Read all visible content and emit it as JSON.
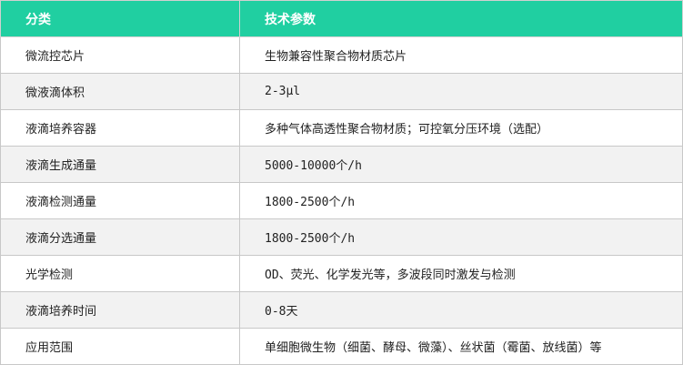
{
  "colors": {
    "header_bg": "#20cfa1",
    "alt_row_bg": "#f2f2f2"
  },
  "headers": [
    "分类",
    "技术参数"
  ],
  "rows": [
    {
      "category": "微流控芯片",
      "value": "生物兼容性聚合物材质芯片"
    },
    {
      "category": "微液滴体积",
      "value": "2-3μl"
    },
    {
      "category": "液滴培养容器",
      "value": "多种气体高透性聚合物材质；可控氧分压环境（选配）"
    },
    {
      "category": "液滴生成通量",
      "value": "5000-10000个/h"
    },
    {
      "category": "液滴检测通量",
      "value": "1800-2500个/h"
    },
    {
      "category": "液滴分选通量",
      "value": "1800-2500个/h"
    },
    {
      "category": "光学检测",
      "value": "OD、荧光、化学发光等，多波段同时激发与检测"
    },
    {
      "category": "液滴培养时间",
      "value": "0-8天"
    },
    {
      "category": "应用范围",
      "value": "单细胞微生物（细菌、酵母、微藻）、丝状菌（霉菌、放线菌）等"
    }
  ]
}
